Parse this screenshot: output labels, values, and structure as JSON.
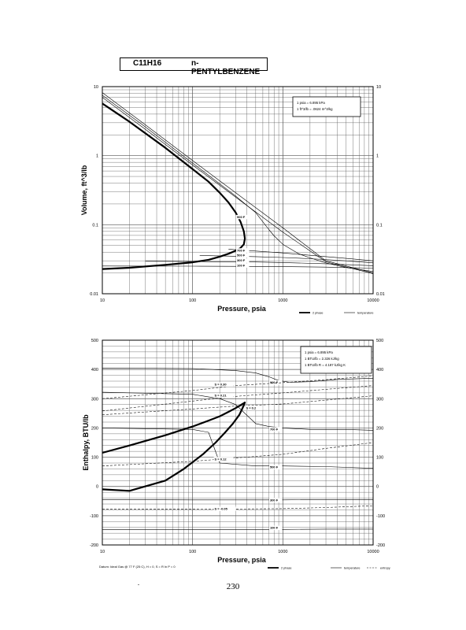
{
  "header": {
    "formula": "C11H16",
    "name": "n-PENTYLBENZENE"
  },
  "page_number": "230",
  "footer": {
    "datum": "Datum: Ideal Gas @ 77 F (25 C), H = 0, S = R ln P = 0"
  },
  "chart_data": [
    {
      "type": "line",
      "xlabel": "Pressure,  psia",
      "ylabel": "Volume, ft^3/lb",
      "x_scale": "log",
      "y_scale": "log",
      "xlim": [
        10,
        10000
      ],
      "ylim": [
        0.01,
        10
      ],
      "x_ticks": [
        10,
        100,
        1000,
        10000
      ],
      "x_tick_labels": [
        "10",
        "100",
        "1000",
        "10000"
      ],
      "y_ticks": [
        0.01,
        0.1,
        1,
        10
      ],
      "y_tick_labels": [
        "0.01",
        "0.1",
        "1",
        "10"
      ],
      "grid": true,
      "conversion_box": [
        "1 psia = 6.895 kPa",
        "1 ft^3/lb = .0624 m^3/kg"
      ],
      "legend_items": [
        "2 phase",
        "temperature"
      ],
      "legend_placement": "bottom-right",
      "series": [
        {
          "role": "2 phase",
          "kind": "saturation-envelope",
          "x": [
            10,
            20,
            50,
            100,
            150,
            200,
            250,
            300,
            340,
            370,
            380,
            370,
            340,
            300,
            250,
            200,
            150,
            100,
            50,
            20,
            10
          ],
          "y": [
            5.7,
            3.1,
            1.3,
            0.64,
            0.42,
            0.29,
            0.21,
            0.15,
            0.11,
            0.08,
            0.063,
            0.052,
            0.046,
            0.042,
            0.038,
            0.0345,
            0.031,
            0.0285,
            0.0262,
            0.0238,
            0.0228
          ]
        },
        {
          "label": "",
          "x": [
            10,
            30,
            100,
            300,
            1000,
            3000,
            10000
          ],
          "y": [
            8.2,
            2.8,
            0.85,
            0.29,
            0.09,
            0.03,
            0.02
          ]
        },
        {
          "label": "",
          "x": [
            10,
            30,
            100,
            300,
            1000,
            3000,
            10000
          ],
          "y": [
            7.0,
            2.4,
            0.73,
            0.25,
            0.078,
            0.029,
            0.0195
          ]
        },
        {
          "label": "900 F",
          "label_at": [
            310,
            0.125
          ],
          "x": [
            10,
            30,
            100,
            200,
            300,
            400,
            500,
            600,
            700,
            800,
            1000,
            1500,
            2000,
            3000,
            5000,
            10000
          ],
          "y": [
            7.5,
            2.6,
            0.78,
            0.39,
            0.26,
            0.19,
            0.15,
            0.11,
            0.085,
            0.069,
            0.052,
            0.038,
            0.033,
            0.028,
            0.024,
            0.021
          ]
        },
        {
          "label": "700 F",
          "label_at": [
            310,
            0.041
          ],
          "x": [
            250,
            500,
            1000,
            2000,
            5000,
            10000
          ],
          "y": [
            0.0442,
            0.0415,
            0.039,
            0.036,
            0.0325,
            0.03
          ]
        },
        {
          "label": "500 F",
          "label_at": [
            310,
            0.0347
          ],
          "x": [
            120,
            500,
            1000,
            2000,
            5000,
            10000
          ],
          "y": [
            0.0358,
            0.0345,
            0.0335,
            0.0322,
            0.03,
            0.028
          ]
        },
        {
          "label": "300 F",
          "label_at": [
            310,
            0.0292
          ],
          "x": [
            30,
            100,
            500,
            1000,
            3000,
            10000
          ],
          "y": [
            0.0296,
            0.0293,
            0.0288,
            0.0283,
            0.0272,
            0.0255
          ]
        },
        {
          "label": "100 F",
          "label_at": [
            310,
            0.0248
          ],
          "x": [
            10,
            100,
            500,
            1000,
            3000,
            10000
          ],
          "y": [
            0.0252,
            0.0251,
            0.0249,
            0.0247,
            0.0243,
            0.0235
          ]
        }
      ]
    },
    {
      "type": "line",
      "xlabel": "Pressure,  psia",
      "ylabel": "Enthalpy, BTU/lb",
      "x_scale": "log",
      "y_scale": "linear",
      "xlim": [
        10,
        10000
      ],
      "ylim": [
        -200,
        500
      ],
      "x_ticks": [
        10,
        100,
        1000,
        10000
      ],
      "x_tick_labels": [
        "10",
        "100",
        "1000",
        "10000"
      ],
      "y_ticks": [
        -200,
        -100,
        0,
        100,
        200,
        300,
        400,
        500
      ],
      "y_tick_labels": [
        "-200",
        "-100",
        "0",
        "100",
        "200",
        "300",
        "400",
        "500"
      ],
      "grid": true,
      "conversion_box": [
        "1 psia = 6.895 kPa",
        "1 BTU/lb = 2.326 kJ/kg",
        "1 BTU/lb R = 4.187 kJ/kg K"
      ],
      "legend_items": [
        "2 phase",
        "temperature",
        "entropy"
      ],
      "legend_placement": "bottom-right",
      "series": [
        {
          "role": "2 phase",
          "kind": "saturation-envelope",
          "x": [
            10,
            20,
            50,
            100,
            150,
            200,
            250,
            300,
            340,
            370,
            380,
            360,
            330,
            280,
            230,
            180,
            130,
            80,
            50,
            20,
            10
          ],
          "y": [
            115,
            140,
            175,
            205,
            225,
            240,
            255,
            268,
            278,
            285,
            287,
            270,
            245,
            215,
            185,
            150,
            110,
            60,
            20,
            -15,
            -10
          ]
        },
        {
          "role": "temperature",
          "label": "900 F",
          "label_at": [
            720,
            352
          ],
          "x": [
            10,
            100,
            300,
            500,
            700,
            900,
            1200,
            2000,
            4000,
            10000
          ],
          "y": [
            405,
            403,
            396,
            388,
            375,
            362,
            356,
            358,
            366,
            370
          ]
        },
        {
          "role": "temperature",
          "label": "700 F",
          "label_at": [
            720,
            192
          ],
          "x": [
            10,
            100,
            200,
            300,
            380,
            500,
            700,
            1000,
            2000,
            5000,
            10000
          ],
          "y": [
            322,
            315,
            300,
            280,
            250,
            215,
            205,
            200,
            195,
            195,
            192
          ]
        },
        {
          "role": "temperature",
          "label": "500 F",
          "label_at": [
            720,
            62
          ],
          "x": [
            10,
            100,
            150,
            200,
            500,
            1000,
            3000,
            10000
          ],
          "y": [
            200,
            195,
            185,
            80,
            70,
            70,
            68,
            62
          ]
        },
        {
          "role": "temperature",
          "label": "300 F",
          "label_at": [
            720,
            -50
          ],
          "x": [
            10,
            100,
            500,
            1000,
            3000,
            10000
          ],
          "y": [
            -45,
            -46,
            -46,
            -46,
            -45,
            -45
          ]
        },
        {
          "role": "temperature",
          "label": "100 F",
          "label_at": [
            720,
            -145
          ],
          "x": [
            10,
            100,
            500,
            1000,
            3000,
            10000
          ],
          "y": [
            -148,
            -148,
            -148,
            -147,
            -146,
            -146
          ]
        },
        {
          "role": "entropy",
          "label": "S = 0.30",
          "label_at": [
            175,
            345
          ],
          "x": [
            10,
            100,
            300,
            1000,
            3000,
            10000
          ],
          "y": [
            300,
            328,
            345,
            355,
            365,
            378
          ]
        },
        {
          "role": "entropy",
          "label": "S = 0.21",
          "label_at": [
            175,
            307
          ],
          "x": [
            10,
            100,
            300,
            1000,
            3000,
            10000
          ],
          "y": [
            258,
            292,
            308,
            320,
            332,
            345
          ]
        },
        {
          "role": "entropy",
          "label": "S = 0.2",
          "label_at": [
            390,
            265
          ],
          "x": [
            10,
            100,
            300,
            1000,
            3000,
            10000
          ],
          "y": [
            245,
            265,
            275,
            282,
            295,
            310
          ]
        },
        {
          "role": "entropy",
          "label": "S = 0.12",
          "label_at": [
            175,
            90
          ],
          "x": [
            10,
            100,
            1000,
            3000,
            10000
          ],
          "y": [
            70,
            86,
            110,
            130,
            150
          ]
        },
        {
          "role": "entropy",
          "label": "S = -0.05",
          "label_at": [
            175,
            -80
          ],
          "x": [
            10,
            100,
            1000,
            3000,
            10000
          ],
          "y": [
            -78,
            -78,
            -76,
            -72,
            -66
          ]
        }
      ]
    }
  ]
}
